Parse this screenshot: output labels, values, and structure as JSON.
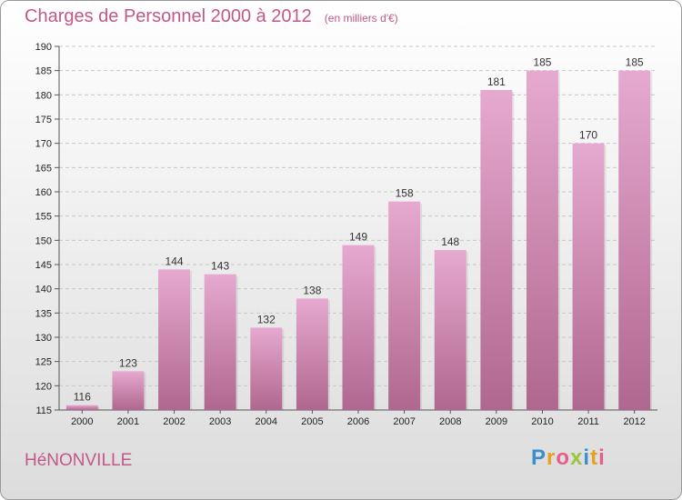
{
  "header": {
    "title": "Charges de Personnel 2000 à 2012",
    "subtitle": "(en milliers d'€)"
  },
  "footer": {
    "commune": "HéNONVILLE",
    "logo_text": "Proxiti"
  },
  "colors": {
    "bar_top": "#e6a9cf",
    "bar_bottom": "#b0678f",
    "title": "#c2588a"
  },
  "chart_data": {
    "type": "bar",
    "title": "Charges de Personnel 2000 à 2012",
    "subtitle": "(en milliers d'€)",
    "categories": [
      "2000",
      "2001",
      "2002",
      "2003",
      "2004",
      "2005",
      "2006",
      "2007",
      "2008",
      "2009",
      "2010",
      "2011",
      "2012"
    ],
    "values": [
      116,
      123,
      144,
      143,
      132,
      138,
      149,
      158,
      148,
      181,
      185,
      170,
      185
    ],
    "ylim": [
      115,
      190
    ],
    "yticks": [
      115,
      120,
      125,
      130,
      135,
      140,
      145,
      150,
      155,
      160,
      165,
      170,
      175,
      180,
      185,
      190
    ],
    "grid": true,
    "legend": "none"
  }
}
